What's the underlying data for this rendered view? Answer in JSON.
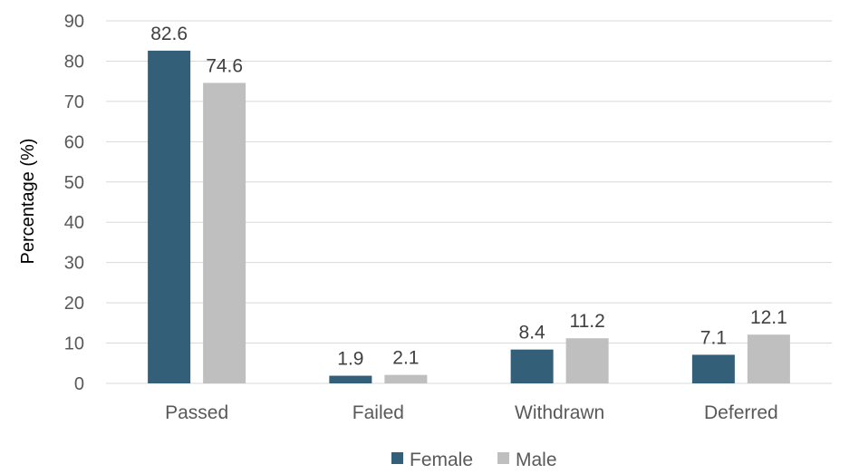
{
  "chart_data": {
    "type": "bar",
    "categories": [
      "Passed",
      "Failed",
      "Withdrawn",
      "Deferred"
    ],
    "series": [
      {
        "name": "Female",
        "values": [
          82.6,
          1.9,
          8.4,
          7.1
        ],
        "labels": [
          "82.6",
          "1.9",
          "8.4",
          "7.1"
        ],
        "color": "#345f78"
      },
      {
        "name": "Male",
        "values": [
          74.6,
          2.1,
          11.2,
          12.1
        ],
        "labels": [
          "74.6",
          "2.1",
          "11.2",
          "12.1"
        ],
        "color": "#bfbfbf"
      }
    ],
    "title": "",
    "xlabel": "",
    "ylabel": "Percentage (%)",
    "ylim": [
      0,
      90
    ],
    "yticks": [
      0,
      10,
      20,
      30,
      40,
      50,
      60,
      70,
      80,
      90
    ],
    "grid": true,
    "legend_position": "bottom"
  }
}
